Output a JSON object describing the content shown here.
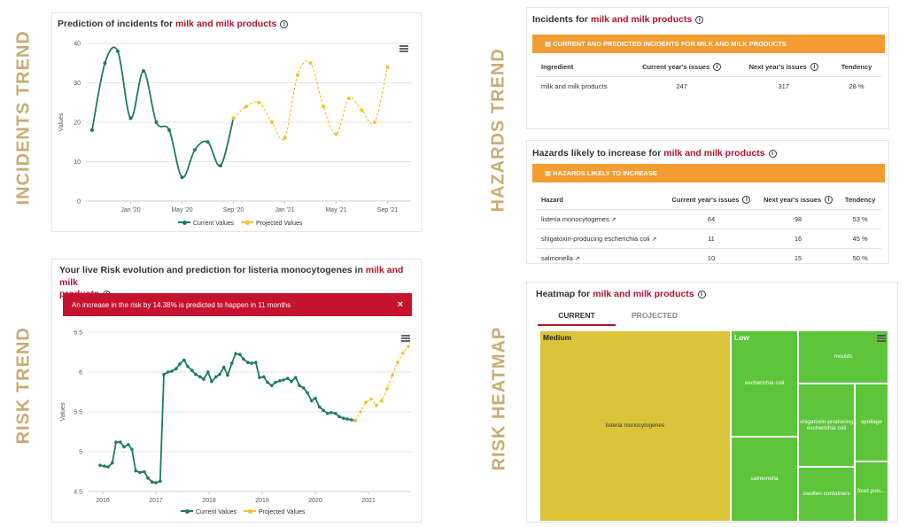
{
  "labels": {
    "incidents_trend": "INCIDENTS TREND",
    "risk_trend": "RISK TREND",
    "hazards_trend": "HAZARDS TREND",
    "risk_heatmap": "RISK HEATMAP"
  },
  "incidents_panel": {
    "title_prefix": "Prediction of incidents for ",
    "title_highlight": "milk and milk products",
    "ylabel": "Values",
    "legend_current": "Current Values",
    "legend_projected": "Projected Values"
  },
  "risk_panel": {
    "title_prefix": "Your live Risk evolution and prediction for listeria monocytogenes in ",
    "title_highlight": "milk and milk",
    "title_highlight2": "products",
    "alert_text": "An increase in the risk by 14.38% is predicted to happen in 11 months",
    "alert_close": "×",
    "ylabel": "Values",
    "legend_current": "Current Values",
    "legend_projected": "Projected Values"
  },
  "incidents_table_panel": {
    "title_prefix": "Incidents for ",
    "title_highlight": "milk and milk products",
    "bar_title": "CURRENT AND PREDICTED INCIDENTS FOR MILK AND MILK PRODUCTS",
    "headers": [
      "Ingredient",
      "Current year's issues",
      "Next year's issues",
      "Tendency"
    ],
    "rows": [
      [
        "milk and milk products",
        "247",
        "317",
        "28 %"
      ]
    ]
  },
  "hazards_panel": {
    "title_prefix": "Hazards likely to increase for ",
    "title_highlight": "milk and milk products",
    "bar_title": "HAZARDS LIKELY TO INCREASE",
    "headers": [
      "Hazard",
      "Current year's issues",
      "Next year's issues",
      "Tendency"
    ],
    "rows": [
      [
        "listeria monocytogenes",
        "64",
        "98",
        "53 %"
      ],
      [
        "shigatoxin-producing escherichia coli",
        "11",
        "16",
        "45 %"
      ],
      [
        "salmonella",
        "10",
        "15",
        "50 %"
      ]
    ]
  },
  "heatmap_panel": {
    "title_prefix": "Heatmap for ",
    "title_highlight": "milk and milk products",
    "tab_current": "CURRENT",
    "tab_projected": "PROJECTED",
    "level_medium": "Medium",
    "level_low": "Low",
    "cells": {
      "listeria": "listeria monocytogenes",
      "ecoli": "escherichia coli",
      "salmonella": "salmonella",
      "moulds": "moulds",
      "stec": "shigatoxin-producing escherichia coli",
      "spoilage": "spoilage",
      "swollen": "swollen containers",
      "foodpois": "food pois..."
    },
    "colors": {
      "medium": "#dcc43a",
      "low": "#5cc53a"
    }
  },
  "chart_data": [
    {
      "type": "line",
      "title": "Prediction of incidents for milk and milk products",
      "ylabel": "Values",
      "ylim": [
        0,
        40
      ],
      "yticks": [
        0,
        10,
        20,
        30,
        40
      ],
      "xticks": [
        "Jan '20",
        "May '20",
        "Sep '20",
        "Jan '21",
        "May '21",
        "Sep '21"
      ],
      "series": [
        {
          "name": "Current Values",
          "color": "#1e7d56",
          "x": [
            "2019-10",
            "2019-11",
            "2019-12",
            "2020-01",
            "2020-02",
            "2020-03",
            "2020-04",
            "2020-05",
            "2020-06",
            "2020-07",
            "2020-08",
            "2020-09"
          ],
          "values": [
            18,
            35,
            38,
            21,
            33,
            20,
            18,
            6,
            13,
            15,
            9,
            21
          ]
        },
        {
          "name": "Projected Values",
          "color": "#f5c22b",
          "x": [
            "2020-09",
            "2020-10",
            "2020-11",
            "2020-12",
            "2021-01",
            "2021-02",
            "2021-03",
            "2021-04",
            "2021-05",
            "2021-06",
            "2021-07",
            "2021-08",
            "2021-09"
          ],
          "values": [
            21,
            24,
            25,
            20,
            16,
            32,
            35,
            24,
            17,
            26,
            23,
            20,
            34
          ]
        }
      ]
    },
    {
      "type": "line",
      "title": "Your live Risk evolution and prediction for listeria monocytogenes in milk and milk products",
      "ylabel": "Values",
      "ylim": [
        4.5,
        6.5
      ],
      "yticks": [
        4.5,
        5,
        5.5,
        6,
        6.5
      ],
      "xticks": [
        "2016",
        "2017",
        "2018",
        "2019",
        "2020",
        "2021"
      ],
      "series": [
        {
          "name": "Current Values",
          "color": "#1e7d56",
          "x": [
            2015.95,
            2016.03,
            2016.1,
            2016.18,
            2016.25,
            2016.33,
            2016.4,
            2016.48,
            2016.55,
            2016.62,
            2016.7,
            2016.78,
            2016.85,
            2016.93,
            2017.0,
            2017.08,
            2017.15,
            2017.23,
            2017.3,
            2017.38,
            2017.45,
            2017.53,
            2017.6,
            2017.68,
            2017.75,
            2017.83,
            2017.9,
            2017.98,
            2018.05,
            2018.13,
            2018.2,
            2018.28,
            2018.35,
            2018.43,
            2018.5,
            2018.58,
            2018.65,
            2018.73,
            2018.8,
            2018.88,
            2018.95,
            2019.03,
            2019.1,
            2019.18,
            2019.25,
            2019.33,
            2019.4,
            2019.48,
            2019.55,
            2019.63,
            2019.7,
            2019.78,
            2019.85,
            2019.93,
            2020.0,
            2020.08,
            2020.15,
            2020.23,
            2020.3,
            2020.38,
            2020.45,
            2020.53,
            2020.6,
            2020.68,
            2020.75
          ],
          "values": [
            4.83,
            4.82,
            4.81,
            4.86,
            5.12,
            5.12,
            5.06,
            5.09,
            5.03,
            4.76,
            4.74,
            4.75,
            4.67,
            4.62,
            4.61,
            4.63,
            5.97,
            6.0,
            6.01,
            6.04,
            6.1,
            6.15,
            6.07,
            6.02,
            5.97,
            5.94,
            5.91,
            6.0,
            5.88,
            5.94,
            5.97,
            6.06,
            5.96,
            6.11,
            6.23,
            6.22,
            6.16,
            6.12,
            6.11,
            6.12,
            5.93,
            5.94,
            5.87,
            5.83,
            5.87,
            5.89,
            5.9,
            5.92,
            5.88,
            5.93,
            5.83,
            5.8,
            5.74,
            5.64,
            5.67,
            5.56,
            5.52,
            5.48,
            5.49,
            5.48,
            5.44,
            5.42,
            5.41,
            5.4,
            5.39
          ]
        },
        {
          "name": "Projected Values",
          "color": "#f5c22b",
          "x": [
            2020.75,
            2020.85,
            2020.95,
            2021.05,
            2021.15,
            2021.25,
            2021.35,
            2021.45,
            2021.55,
            2021.65,
            2021.75
          ],
          "values": [
            5.39,
            5.5,
            5.62,
            5.66,
            5.58,
            5.64,
            5.79,
            5.96,
            6.12,
            6.24,
            6.32
          ]
        }
      ]
    }
  ]
}
